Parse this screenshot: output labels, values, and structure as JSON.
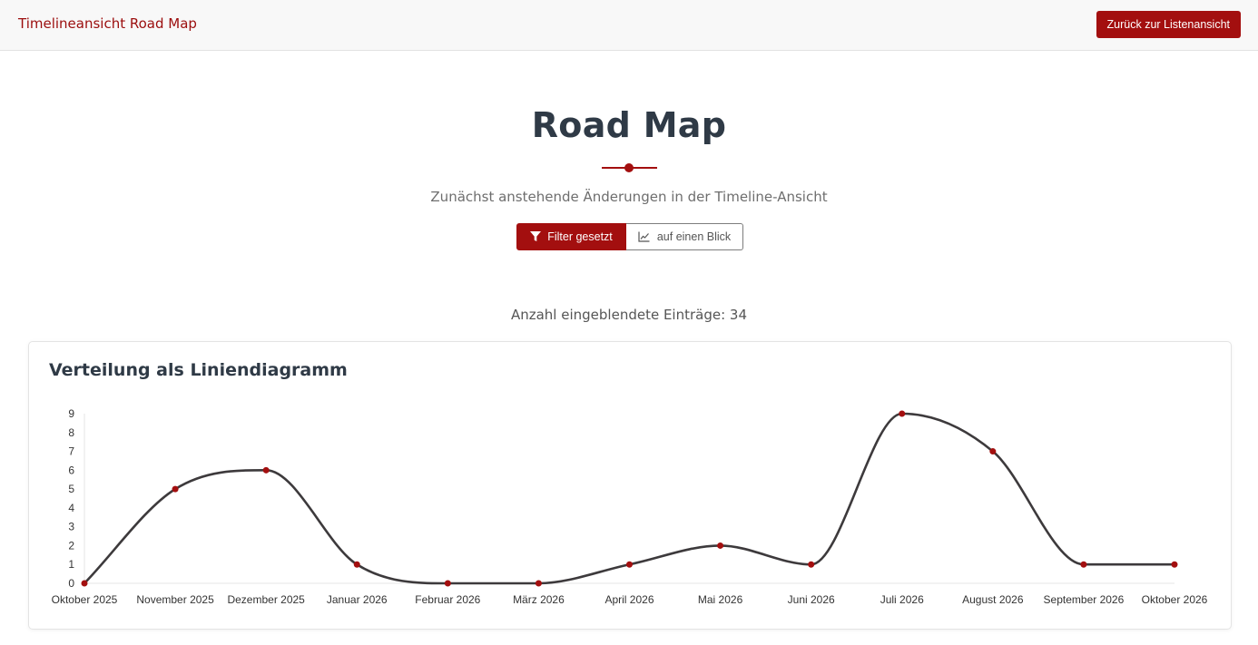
{
  "navbar": {
    "brand": "Timelineansicht Road Map",
    "back_button": "Zurück zur Listenansicht"
  },
  "header": {
    "title": "Road Map",
    "subtitle": "Zunächst anstehende Änderungen in der Timeline-Ansicht"
  },
  "toolbar": {
    "filter_label": "Filter gesetzt",
    "filter_icon": "filter-icon",
    "glance_label": "auf einen Blick",
    "glance_icon": "line-chart-icon"
  },
  "count_text": "Anzahl eingeblendete Einträge: 34",
  "card": {
    "title": "Verteilung als Liniendiagramm"
  },
  "colors": {
    "accent": "#a30f0f",
    "line": "#3d3a3c",
    "text_dark": "#2f3a46"
  },
  "chart_data": {
    "type": "line",
    "categories": [
      "Oktober 2025",
      "November 2025",
      "Dezember 2025",
      "Januar 2026",
      "Februar 2026",
      "März 2026",
      "April 2026",
      "Mai 2026",
      "Juni 2026",
      "Juli 2026",
      "August 2026",
      "September 2026",
      "Oktober 2026"
    ],
    "series": [
      {
        "values": [
          0,
          5,
          6,
          1,
          0,
          0,
          1,
          2,
          1,
          9,
          7,
          1,
          1
        ]
      }
    ],
    "ylim": [
      0,
      9
    ],
    "yticks": [
      0,
      1,
      2,
      3,
      4,
      5,
      6,
      7,
      8,
      9
    ],
    "smooth": true,
    "grid": false,
    "legend": "none"
  }
}
